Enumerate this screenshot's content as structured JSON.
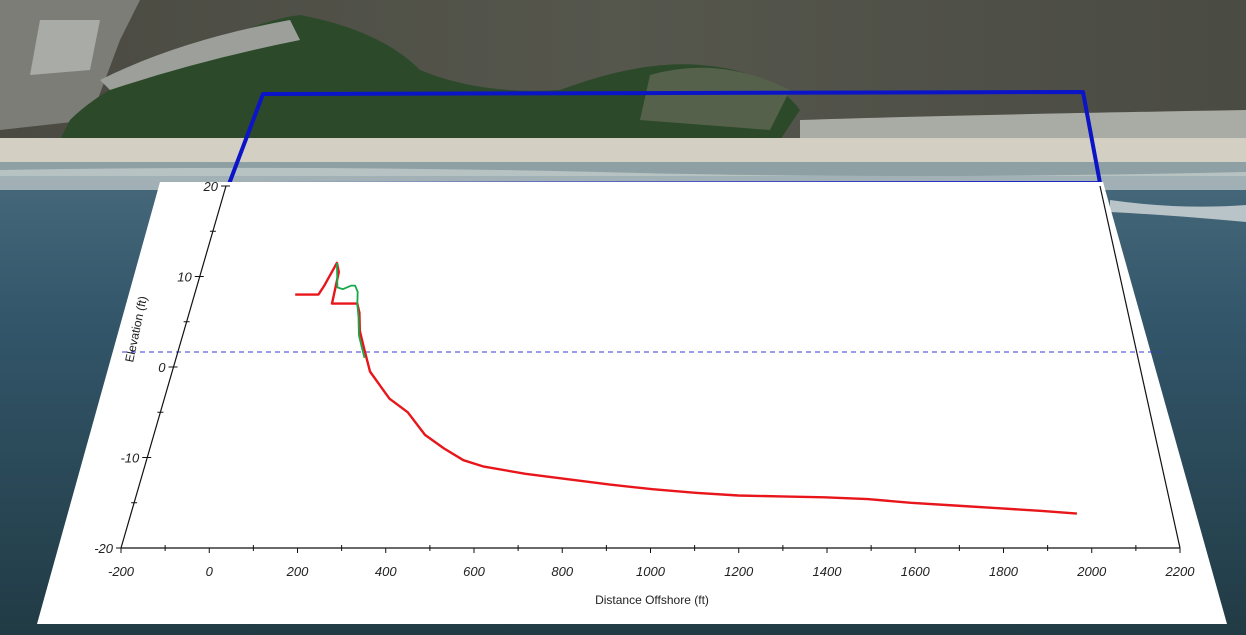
{
  "colors": {
    "profile_red": "#e8161b",
    "profile_green": "#18a84a",
    "zero_line": "#3a3ad0",
    "frame_blue": "#0b14c6",
    "axis": "#111111",
    "panel": "#ffffff"
  },
  "chart_data": {
    "type": "line",
    "title": "",
    "xlabel": "Distance Offshore (ft)",
    "ylabel": "Elevation (ft)",
    "xlim": [
      -200,
      2200
    ],
    "ylim": [
      -20,
      20
    ],
    "x_ticks": [
      "-200",
      "0",
      "200",
      "400",
      "600",
      "800",
      "1000",
      "1200",
      "1400",
      "1600",
      "1800",
      "2000",
      "2200"
    ],
    "y_ticks": [
      "20",
      "10",
      "0",
      "-10",
      "-20"
    ],
    "reference_line": {
      "y": 0,
      "style": "dashed"
    },
    "grid": false,
    "series": [
      {
        "color": "#e8161b",
        "points": [
          [
            60,
            8
          ],
          [
            120,
            8
          ],
          [
            130,
            9
          ],
          [
            150,
            11.5
          ],
          [
            160,
            10.5
          ],
          [
            160,
            7
          ],
          [
            210,
            7
          ],
          [
            225,
            7
          ],
          [
            235,
            6
          ],
          [
            245,
            4
          ],
          [
            255,
            3
          ],
          [
            265,
            2
          ],
          [
            275,
            1
          ],
          [
            290,
            -0.5
          ],
          [
            320,
            -2
          ],
          [
            350,
            -3.5
          ],
          [
            400,
            -5
          ],
          [
            450,
            -7.5
          ],
          [
            500,
            -9
          ],
          [
            550,
            -10.3
          ],
          [
            600,
            -11
          ],
          [
            700,
            -11.8
          ],
          [
            800,
            -12.4
          ],
          [
            900,
            -13
          ],
          [
            1000,
            -13.5
          ],
          [
            1100,
            -13.9
          ],
          [
            1200,
            -14.2
          ],
          [
            1300,
            -14.3
          ],
          [
            1400,
            -14.4
          ],
          [
            1500,
            -14.6
          ],
          [
            1600,
            -15
          ],
          [
            1700,
            -15.3
          ],
          [
            1800,
            -15.6
          ],
          [
            1900,
            -15.9
          ],
          [
            1980,
            -16.2
          ]
        ]
      },
      {
        "color": "#18a84a",
        "points": [
          [
            150,
            11.5
          ],
          [
            165,
            8.8
          ],
          [
            180,
            8.6
          ],
          [
            200,
            9
          ],
          [
            210,
            9
          ],
          [
            220,
            8.3
          ],
          [
            225,
            7
          ],
          [
            235,
            5.5
          ],
          [
            245,
            3.5
          ],
          [
            260,
            2
          ],
          [
            270,
            1
          ]
        ]
      }
    ]
  }
}
